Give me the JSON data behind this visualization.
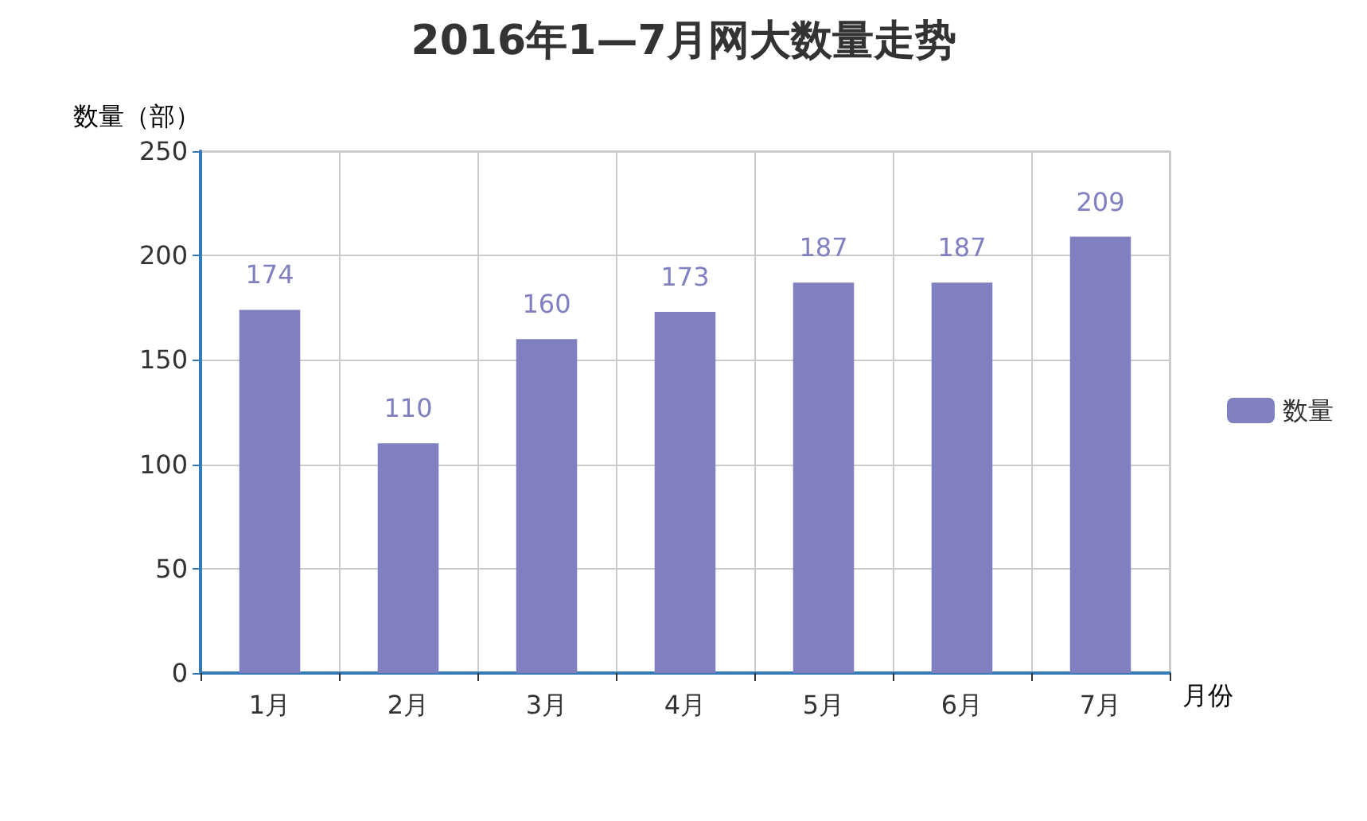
{
  "chart_data": {
    "type": "bar",
    "title": "2016年1—7月网大数量走势",
    "xlabel": "月份",
    "ylabel": "数量（部）",
    "categories": [
      "1月",
      "2月",
      "3月",
      "4月",
      "5月",
      "6月",
      "7月"
    ],
    "series": [
      {
        "name": "数量",
        "color": "#8080c0",
        "values": [
          174,
          110,
          160,
          173,
          187,
          187,
          209
        ]
      }
    ],
    "ylim": [
      0,
      250
    ],
    "yticks": [
      0,
      50,
      100,
      150,
      200,
      250
    ],
    "grid": true,
    "legend": "right",
    "data_labels": true
  }
}
